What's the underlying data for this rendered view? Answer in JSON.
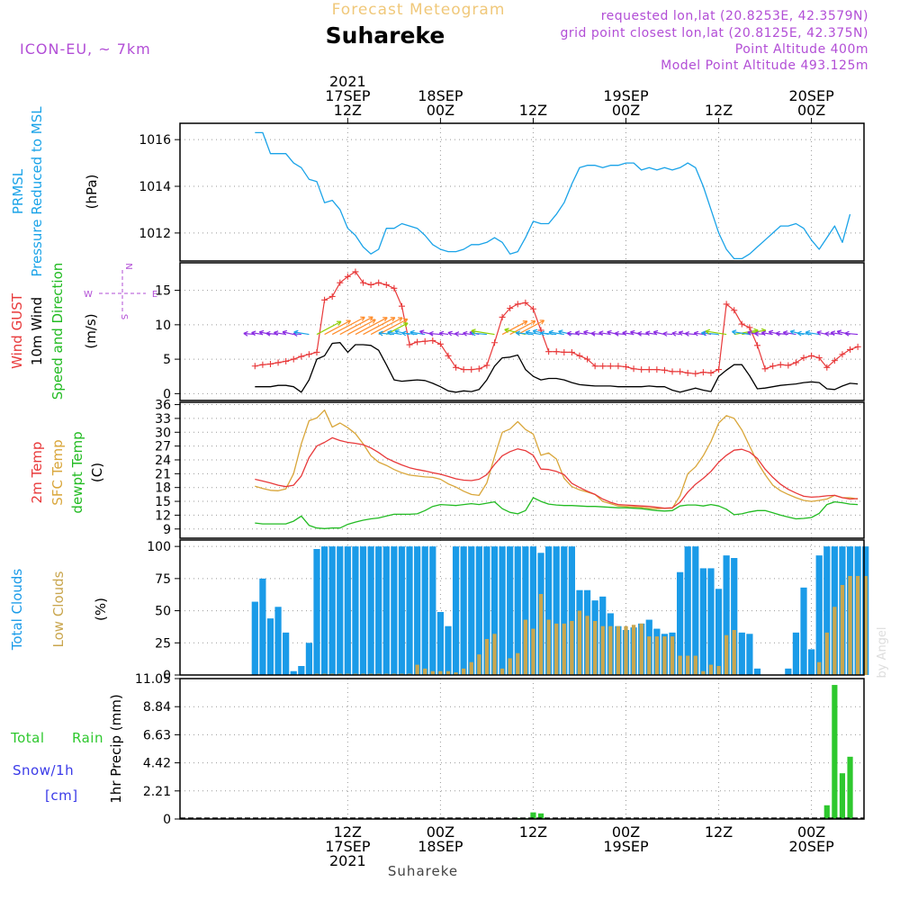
{
  "header": {
    "subtitle": "Forecast Meteogram",
    "location": "Suhareke",
    "model": "ICON-EU, ~ 7km",
    "requested": "requested lon,lat (20.8253E, 42.3579N)",
    "grid_point": "grid point closest lon,lat (20.8125E, 42.375N)",
    "point_altitude": "Point Altitude 400m",
    "model_altitude": "Model Point Altitude 493.125m",
    "footer_location": "Suhareke",
    "watermark": "by Angel"
  },
  "time_axis": {
    "top_labels": [
      {
        "h": 12,
        "lines": [
          "2021",
          "17SEP",
          "12Z"
        ]
      },
      {
        "h": 24,
        "lines": [
          "18SEP",
          "00Z"
        ]
      },
      {
        "h": 36,
        "lines": [
          "12Z"
        ]
      },
      {
        "h": 48,
        "lines": [
          "19SEP",
          "00Z"
        ]
      },
      {
        "h": 60,
        "lines": [
          "12Z"
        ]
      },
      {
        "h": 72,
        "lines": [
          "20SEP",
          "00Z"
        ]
      }
    ],
    "bottom_labels": [
      {
        "h": 12,
        "lines": [
          "12Z",
          "17SEP",
          "2021"
        ]
      },
      {
        "h": 24,
        "lines": [
          "00Z",
          "18SEP"
        ]
      },
      {
        "h": 36,
        "lines": [
          "12Z"
        ]
      },
      {
        "h": 48,
        "lines": [
          "00Z",
          "19SEP"
        ]
      },
      {
        "h": 60,
        "lines": [
          "12Z"
        ]
      },
      {
        "h": 72,
        "lines": [
          "00Z",
          "20SEP"
        ]
      }
    ]
  },
  "panel_labels": {
    "pressure": [
      "PRMSL",
      "Pressure Reduced to MSL",
      "(hPa)"
    ],
    "wind": [
      "Wind GUST",
      "10m Wind",
      "Speed and Direction",
      "(m/s)"
    ],
    "compass": {
      "n": "N",
      "s": "S",
      "w": "W",
      "e": "E"
    },
    "temp": [
      "2m Temp",
      "SFC Temp",
      "dewpt Temp",
      "(C)"
    ],
    "clouds": [
      "Total Clouds",
      "Low Clouds",
      "(%)"
    ],
    "precip": [
      "1hr Precip (mm)",
      "Total",
      "Rain",
      "Snow/1h",
      "[cm]"
    ]
  },
  "colors": {
    "pressure": "#1aa3e8",
    "gust": "#e8393a",
    "wind": "#000000",
    "temp": "#e8393a",
    "sfc": "#d9a63a",
    "dewpt": "#22bb22",
    "total_cloud": "#1a9be8",
    "low_cloud": "#c9a64e",
    "rain": "#2ec82e",
    "snow": "#3a3ae8",
    "meta": "#b24ed6",
    "title": "#f0c87a"
  },
  "chart_data": [
    {
      "type": "line",
      "name": "pressure",
      "x_start_hour": 0,
      "x_step_hour": 1,
      "ylim": [
        1010.8,
        1016.7
      ],
      "yticks": [
        1012,
        1014,
        1016
      ],
      "series": [
        {
          "name": "PRMSL",
          "values": [
            1016.3,
            1016.3,
            1015.4,
            1015.4,
            1015.4,
            1015.0,
            1014.8,
            1014.3,
            1014.2,
            1013.3,
            1013.4,
            1013.0,
            1012.2,
            1011.9,
            1011.4,
            1011.1,
            1011.3,
            1012.2,
            1012.2,
            1012.4,
            1012.3,
            1012.2,
            1011.9,
            1011.5,
            1011.3,
            1011.2,
            1011.2,
            1011.3,
            1011.5,
            1011.5,
            1011.6,
            1011.8,
            1011.6,
            1011.1,
            1011.2,
            1011.8,
            1012.5,
            1012.4,
            1012.4,
            1012.8,
            1013.3,
            1014.1,
            1014.8,
            1014.9,
            1014.9,
            1014.8,
            1014.9,
            1014.9,
            1015.0,
            1015.0,
            1014.7,
            1014.8,
            1014.7,
            1014.8,
            1014.7,
            1014.8,
            1015.0,
            1014.8,
            1014.0,
            1013.0,
            1012.0,
            1011.3,
            1010.9,
            1010.9,
            1011.1,
            1011.4,
            1011.7,
            1012.0,
            1012.3,
            1012.3,
            1012.4,
            1012.2,
            1011.7,
            1011.3,
            1011.8,
            1012.3,
            1011.6,
            1012.8
          ]
        }
      ]
    },
    {
      "type": "line",
      "name": "wind",
      "x_start_hour": 0,
      "x_step_hour": 1,
      "ylim": [
        -1,
        19
      ],
      "yticks": [
        0,
        5,
        10,
        15
      ],
      "series": [
        {
          "name": "Wind GUST",
          "values": [
            4.0,
            4.2,
            4.3,
            4.5,
            4.7,
            5.0,
            5.4,
            5.7,
            6.0,
            13.6,
            14.1,
            16.1,
            17.0,
            17.7,
            16.1,
            15.8,
            16.1,
            15.8,
            15.3,
            12.7,
            7.1,
            7.5,
            7.6,
            7.7,
            7.2,
            5.5,
            3.8,
            3.5,
            3.5,
            3.6,
            4.1,
            7.4,
            11.1,
            12.4,
            13.0,
            13.2,
            12.3,
            9.2,
            6.1,
            6.1,
            6.0,
            6.0,
            5.5,
            5.0,
            4.0,
            4.0,
            4.0,
            4.0,
            3.9,
            3.6,
            3.5,
            3.5,
            3.5,
            3.4,
            3.2,
            3.2,
            3.0,
            2.9,
            3.1,
            3.0,
            3.5,
            13.0,
            12.1,
            10.1,
            9.6,
            7.0,
            3.6,
            4.0,
            4.2,
            4.1,
            4.5,
            5.2,
            5.5,
            5.2,
            3.8,
            4.8,
            5.7,
            6.4,
            6.8
          ]
        },
        {
          "name": "10m Wind",
          "values": [
            1.0,
            1.0,
            1.0,
            1.2,
            1.2,
            1.0,
            0.2,
            2.0,
            5.0,
            5.5,
            7.3,
            7.4,
            6.0,
            7.1,
            7.1,
            7.0,
            6.3,
            4.2,
            2.0,
            1.8,
            1.9,
            2.0,
            1.9,
            1.5,
            1.0,
            0.4,
            0.2,
            0.4,
            0.3,
            0.6,
            2.0,
            4.0,
            5.2,
            5.3,
            5.6,
            3.5,
            2.5,
            2.0,
            2.2,
            2.2,
            2.0,
            1.6,
            1.3,
            1.2,
            1.1,
            1.1,
            1.1,
            1.0,
            1.0,
            1.0,
            1.0,
            1.1,
            1.0,
            1.0,
            0.5,
            0.2,
            0.5,
            0.8,
            0.5,
            0.3,
            2.5,
            3.4,
            4.2,
            4.2,
            2.6,
            0.7,
            0.8,
            1.0,
            1.2,
            1.3,
            1.4,
            1.6,
            1.7,
            1.6,
            0.7,
            0.6,
            1.1,
            1.5,
            1.4
          ]
        }
      ],
      "barbs": {
        "y_value": 8.6,
        "note": "direction arrows along 10m wind"
      }
    },
    {
      "type": "line",
      "name": "temperature",
      "x_start_hour": 0,
      "x_step_hour": 1,
      "ylim": [
        7,
        36.5
      ],
      "yticks": [
        9,
        12,
        15,
        18,
        21,
        24,
        27,
        30,
        33,
        36
      ],
      "series": [
        {
          "name": "2m Temp",
          "values": [
            19.8,
            19.4,
            19.0,
            18.5,
            18.2,
            18.5,
            20.5,
            24.5,
            27.0,
            27.8,
            28.8,
            28.2,
            27.8,
            27.6,
            27.3,
            26.6,
            25.6,
            24.4,
            23.6,
            22.9,
            22.3,
            21.9,
            21.6,
            21.2,
            20.9,
            20.4,
            19.9,
            19.6,
            19.5,
            19.8,
            20.8,
            23.0,
            24.9,
            25.8,
            26.4,
            26.0,
            25.0,
            22.0,
            21.9,
            21.5,
            20.8,
            18.9,
            18.0,
            17.2,
            16.5,
            15.5,
            14.8,
            14.3,
            14.2,
            14.1,
            14.0,
            13.9,
            13.7,
            13.5,
            13.6,
            14.8,
            17.0,
            18.7,
            20.0,
            21.5,
            23.5,
            25.0,
            26.1,
            26.3,
            25.7,
            24.3,
            22.0,
            20.2,
            18.7,
            17.6,
            16.8,
            16.1,
            15.9,
            16.0,
            16.2,
            16.3,
            15.8,
            15.5,
            15.6
          ]
        },
        {
          "name": "SFC Temp",
          "values": [
            18.3,
            17.8,
            17.4,
            17.3,
            17.7,
            21.0,
            27.5,
            32.5,
            33.1,
            34.8,
            31.1,
            32.0,
            31.0,
            29.7,
            27.5,
            24.9,
            23.5,
            22.8,
            21.9,
            21.2,
            20.7,
            20.5,
            20.3,
            20.2,
            19.8,
            18.8,
            18.1,
            17.2,
            16.5,
            16.3,
            19.0,
            24.7,
            30.0,
            30.7,
            32.3,
            30.6,
            29.6,
            25.0,
            25.5,
            24.2,
            20.0,
            18.2,
            17.5,
            17.0,
            16.5,
            15.0,
            14.5,
            14.0,
            13.9,
            13.8,
            13.7,
            13.5,
            13.4,
            13.5,
            13.5,
            16.2,
            21.0,
            22.5,
            24.9,
            28.0,
            32.0,
            33.6,
            33.0,
            30.5,
            27.0,
            23.5,
            20.8,
            18.5,
            17.3,
            16.5,
            15.8,
            15.2,
            15.0,
            15.2,
            15.5,
            16.3,
            15.8,
            15.8,
            15.5
          ]
        },
        {
          "name": "dewpt Temp",
          "values": [
            10.3,
            10.1,
            10.1,
            10.1,
            10.1,
            10.7,
            11.8,
            9.8,
            9.2,
            9.1,
            9.2,
            9.2,
            10.0,
            10.5,
            10.9,
            11.2,
            11.4,
            11.8,
            12.2,
            12.2,
            12.2,
            12.3,
            13.0,
            13.9,
            14.3,
            14.2,
            14.1,
            14.3,
            14.5,
            14.3,
            14.6,
            14.9,
            13.4,
            12.6,
            12.3,
            13.0,
            15.8,
            15.0,
            14.4,
            14.2,
            14.1,
            14.1,
            14.0,
            13.9,
            13.9,
            13.8,
            13.7,
            13.6,
            13.6,
            13.5,
            13.4,
            13.2,
            13.0,
            12.9,
            13.0,
            14.0,
            14.2,
            14.2,
            14.0,
            14.3,
            14.0,
            13.3,
            12.1,
            12.3,
            12.7,
            13.0,
            13.0,
            12.5,
            12.0,
            11.6,
            11.2,
            11.3,
            11.5,
            12.4,
            14.3,
            14.9,
            14.7,
            14.4,
            14.3
          ]
        }
      ]
    },
    {
      "type": "bar",
      "name": "clouds",
      "x_start_hour": 0,
      "x_step_hour": 1,
      "ylim": [
        0,
        105
      ],
      "yticks": [
        0,
        25,
        50,
        75,
        100
      ],
      "series": [
        {
          "name": "Total Clouds",
          "values": [
            57,
            75,
            44,
            53,
            33,
            3,
            7,
            25,
            98,
            100,
            100,
            100,
            100,
            100,
            100,
            100,
            100,
            100,
            100,
            100,
            100,
            100,
            100,
            100,
            49,
            38,
            100,
            100,
            100,
            100,
            100,
            100,
            100,
            100,
            100,
            100,
            100,
            95,
            100,
            100,
            100,
            100,
            66,
            66,
            58,
            61,
            48,
            38,
            35,
            37,
            40,
            43,
            36,
            32,
            33,
            80,
            100,
            100,
            83,
            83,
            67,
            93,
            91,
            33,
            32,
            5,
            0,
            0,
            0,
            5,
            33,
            68,
            20,
            93,
            100,
            100,
            100,
            100,
            100,
            100
          ]
        },
        {
          "name": "Low Clouds",
          "values": [
            0,
            0,
            0,
            0,
            0,
            0,
            0,
            0,
            1,
            1,
            1,
            1,
            1,
            1,
            1,
            1,
            1,
            1,
            1,
            1,
            1,
            8,
            5,
            3,
            3,
            3,
            2,
            5,
            10,
            16,
            28,
            32,
            5,
            13,
            17,
            43,
            36,
            63,
            43,
            40,
            40,
            42,
            50,
            46,
            42,
            38,
            38,
            38,
            38,
            39,
            40,
            30,
            30,
            30,
            30,
            15,
            15,
            15,
            3,
            8,
            7,
            31,
            35,
            0,
            0,
            0,
            0,
            0,
            0,
            0,
            0,
            0,
            0,
            10,
            33,
            53,
            70,
            77,
            77,
            77
          ]
        }
      ]
    },
    {
      "type": "bar",
      "name": "precipitation",
      "x_start_hour": 0,
      "x_step_hour": 1,
      "ylim": [
        0,
        11.05
      ],
      "yticks": [
        0,
        2.21,
        4.42,
        6.63,
        8.84,
        11.05
      ],
      "series": [
        {
          "name": "Rain",
          "values": [
            0,
            0,
            0,
            0,
            0,
            0,
            0,
            0,
            0,
            0,
            0,
            0,
            0,
            0,
            0,
            0,
            0,
            0,
            0,
            0,
            0,
            0,
            0,
            0,
            0,
            0,
            0,
            0,
            0,
            0,
            0,
            0,
            0,
            0,
            0.08,
            0.06,
            0.52,
            0.44,
            0,
            0,
            0,
            0,
            0,
            0.06,
            0,
            0,
            0,
            0,
            0,
            0,
            0,
            0,
            0,
            0,
            0,
            0,
            0,
            0,
            0,
            0,
            0.06,
            0,
            0,
            0,
            0,
            0,
            0,
            0,
            0,
            0,
            0,
            0,
            0,
            0,
            1.08,
            10.55,
            3.6,
            4.9
          ]
        }
      ]
    }
  ]
}
